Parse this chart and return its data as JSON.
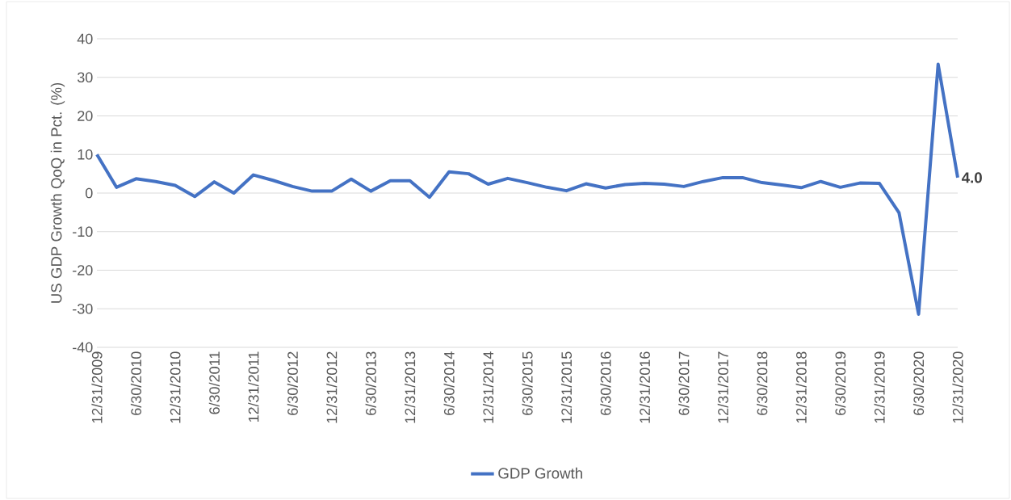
{
  "chart_data": {
    "type": "line",
    "ylabel": "US GDP Growth QoQ in Pct. (%)",
    "categories": [
      "12/31/2009",
      null,
      "6/30/2010",
      null,
      "12/31/2010",
      null,
      "6/30/2011",
      null,
      "12/31/2011",
      null,
      "6/30/2012",
      null,
      "12/31/2012",
      null,
      "6/30/2013",
      null,
      "12/31/2013",
      null,
      "6/30/2014",
      null,
      "12/31/2014",
      null,
      "6/30/2015",
      null,
      "12/31/2015",
      null,
      "6/30/2016",
      null,
      "12/31/2016",
      null,
      "6/30/2017",
      null,
      "12/31/2017",
      null,
      "6/30/2018",
      null,
      "12/31/2018",
      null,
      "6/30/2019",
      null,
      "12/31/2019",
      null,
      "6/30/2020",
      null,
      "12/31/2020"
    ],
    "series": [
      {
        "name": "GDP Growth",
        "color": "#4472c4",
        "values": [
          10.0,
          1.5,
          3.7,
          3.0,
          2.0,
          -0.9,
          2.9,
          0.0,
          4.7,
          3.3,
          1.7,
          0.5,
          0.5,
          3.6,
          0.5,
          3.2,
          3.2,
          -1.1,
          5.5,
          5.0,
          2.3,
          3.8,
          2.7,
          1.5,
          0.6,
          2.4,
          1.3,
          2.2,
          2.5,
          2.3,
          1.7,
          3.0,
          4.0,
          4.0,
          2.7,
          2.1,
          1.4,
          3.0,
          1.5,
          2.6,
          2.5,
          -5.1,
          -31.4,
          33.4,
          4.0
        ],
        "value_labels": [
          null,
          null,
          null,
          null,
          null,
          null,
          null,
          null,
          null,
          null,
          null,
          null,
          null,
          null,
          null,
          null,
          null,
          null,
          null,
          null,
          null,
          null,
          null,
          null,
          null,
          null,
          null,
          null,
          null,
          null,
          null,
          null,
          null,
          null,
          null,
          null,
          null,
          null,
          null,
          null,
          null,
          null,
          null,
          null,
          "4.0"
        ]
      }
    ],
    "ylim": [
      -40,
      40
    ],
    "yticks": [
      -40,
      -30,
      -20,
      -10,
      0,
      10,
      20,
      30,
      40
    ],
    "grid": "y",
    "legend": "bottom",
    "line_style": "solid",
    "marker": "none"
  }
}
